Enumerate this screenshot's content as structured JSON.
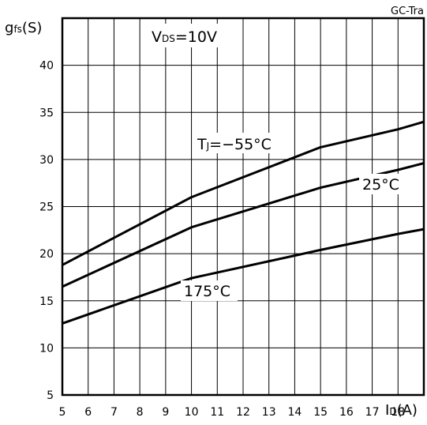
{
  "corner_tag": "GC-Tra",
  "chart_data": {
    "type": "line",
    "ylabel_main": "g",
    "ylabel_sub": "fs",
    "ylabel_unit": "(S)",
    "xlabel_main": "I",
    "xlabel_sub": "D",
    "xlabel_unit": "(A)",
    "condition_main": "V",
    "condition_sub": "DS",
    "condition_value": "=10V",
    "xlim": [
      5,
      19
    ],
    "ylim": [
      5,
      45
    ],
    "x_ticks": [
      "5",
      "6",
      "7",
      "8",
      "9",
      "10",
      "11",
      "12",
      "13",
      "14",
      "15",
      "16",
      "17",
      "18"
    ],
    "y_ticks": [
      "5",
      "10",
      "15",
      "20",
      "25",
      "30",
      "35",
      "40"
    ],
    "grid": true,
    "series": [
      {
        "name": "TJ=-55°C",
        "label_main": "T",
        "label_sub": "J",
        "label_rest": "=−55°C",
        "x": [
          5,
          10,
          15,
          18,
          19
        ],
        "y": [
          18.8,
          26.0,
          31.3,
          33.2,
          34.0
        ]
      },
      {
        "name": "25°C",
        "label_main": "25°C",
        "x": [
          5,
          10,
          15,
          18,
          19
        ],
        "y": [
          16.5,
          22.8,
          27.0,
          28.9,
          29.6
        ]
      },
      {
        "name": "175°C",
        "label_main": "175°C",
        "x": [
          5,
          10,
          15,
          18,
          19
        ],
        "y": [
          12.6,
          17.4,
          20.4,
          22.1,
          22.6
        ]
      }
    ]
  }
}
